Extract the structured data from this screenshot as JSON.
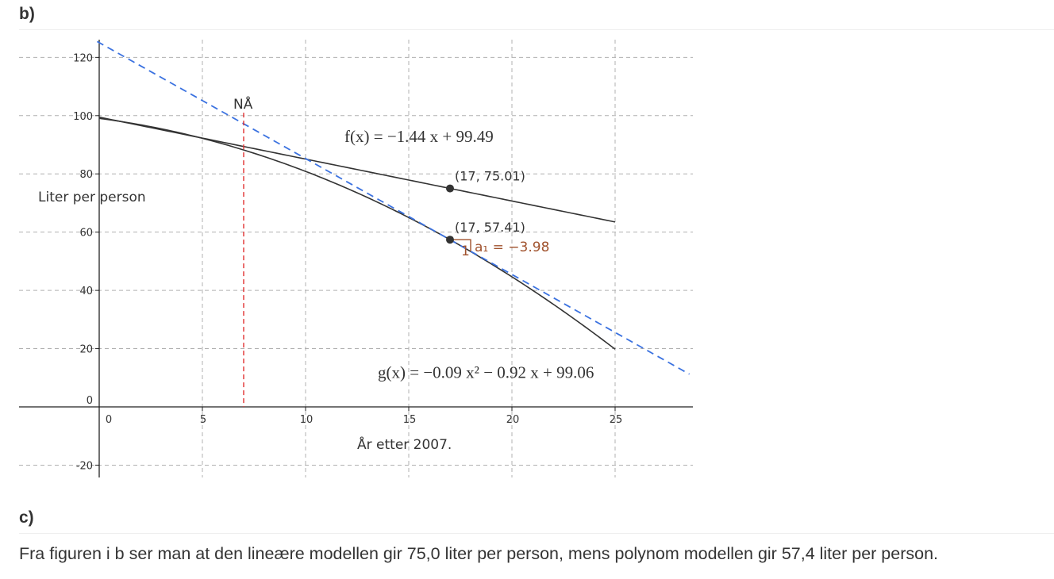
{
  "sections": {
    "b_heading": "b)",
    "c_heading": "c)",
    "c_text": "Fra figuren i b ser man at den lineære modellen gir 75,0 liter per person, mens polynom modellen gir 57,4 liter per person."
  },
  "chart_data": {
    "type": "line",
    "xlabel": "År etter 2007.",
    "ylabel": "Liter per person",
    "xlim": [
      -4,
      28.6
    ],
    "ylim": [
      -25,
      127
    ],
    "x_ticks": [
      0,
      5,
      10,
      15,
      20,
      25
    ],
    "y_ticks": [
      -20,
      0,
      20,
      40,
      60,
      80,
      100,
      120
    ],
    "grid": true,
    "series": [
      {
        "name": "f(x)",
        "kind": "linear",
        "equation_label": "f(x)  =  −1.44 x + 99.49",
        "a": -1.44,
        "b": 99.49,
        "domain": [
          0,
          25
        ],
        "color": "#333333"
      },
      {
        "name": "g(x)",
        "kind": "quadratic",
        "equation_label": "g(x)  =  −0.09 x² − 0.92 x + 99.06",
        "a": -0.09,
        "b": -0.92,
        "c": 99.06,
        "domain": [
          0,
          25
        ],
        "color": "#333333"
      }
    ],
    "tangent": {
      "x0": 17,
      "y0": 57.41,
      "slope": -3.98,
      "color": "#3b72e0",
      "dashed": true,
      "slope_label": "a₁ = −3.98",
      "unit_label": "1"
    },
    "vertical_marker": {
      "x": 7,
      "label": "NÅ",
      "color": "#e03030",
      "dashed": true
    },
    "points": [
      {
        "x": 17,
        "y": 75.01,
        "label": "(17, 75.01)"
      },
      {
        "x": 17,
        "y": 57.41,
        "label": "(17, 57.41)"
      }
    ]
  }
}
